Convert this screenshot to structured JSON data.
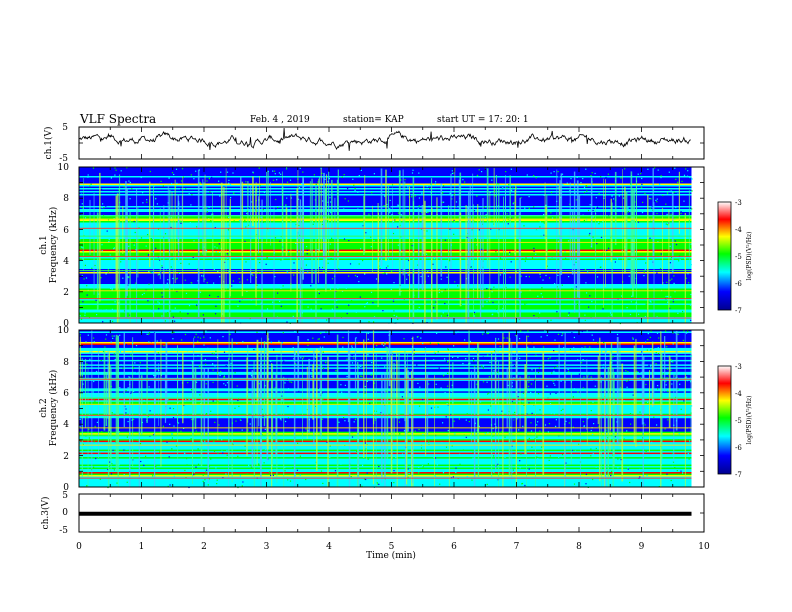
{
  "header": {
    "title": "VLF Spectra",
    "date": "Feb. 4 , 2019",
    "station": "station= KAP",
    "start": "start  UT =  17: 20: 1"
  },
  "chart_data": [
    {
      "type": "line",
      "panel": "ch1-waveform",
      "ylabel": "ch.1(V)",
      "ylim": [
        -5,
        5
      ],
      "yticks": [
        "5",
        "-5"
      ],
      "xlim": [
        0,
        10
      ],
      "description_values": {
        "approx_mean_v": 1.0,
        "approx_range_v": [
          -4.3,
          4.7
        ]
      }
    },
    {
      "type": "heatmap",
      "panel": "ch1-spectrogram",
      "ylabel_line1": "ch.1",
      "ylabel_line2": "Frequency (kHz)",
      "ylim": [
        0,
        10
      ],
      "yticks": [
        "0",
        "2",
        "4",
        "6",
        "8",
        "10"
      ],
      "xlim": [
        0,
        10
      ],
      "data_end_min": 9.8,
      "colorbar": {
        "label": "log(PSD)(V²/Hz)",
        "range": [
          -7,
          -3
        ],
        "ticks": [
          "-3",
          "-4",
          "-5",
          "-6",
          "-7"
        ]
      }
    },
    {
      "type": "heatmap",
      "panel": "ch2-spectrogram",
      "ylabel_line1": "ch.2",
      "ylabel_line2": "Frequency (kHz)",
      "ylim": [
        0,
        10
      ],
      "yticks": [
        "0",
        "2",
        "4",
        "6",
        "8",
        "10"
      ],
      "xlim": [
        0,
        10
      ],
      "data_end_min": 9.8,
      "colorbar": {
        "label": "log(PSD)(V²/Hz)",
        "range": [
          -7,
          -3
        ],
        "ticks": [
          "-3",
          "-4",
          "-5",
          "-6",
          "-7"
        ]
      }
    },
    {
      "type": "line",
      "panel": "ch3-waveform",
      "ylabel": "ch.3(V)",
      "ylim": [
        -5,
        5
      ],
      "yticks": [
        "5",
        "0",
        "-5"
      ],
      "xlim": [
        0,
        10
      ],
      "constant_value_v": -0.2
    }
  ],
  "xaxis": {
    "label": "Time (min)",
    "ticks": [
      "0",
      "1",
      "2",
      "3",
      "4",
      "5",
      "6",
      "7",
      "8",
      "9",
      "10"
    ]
  },
  "colors": {
    "colormap": [
      "#00008f",
      "#0000ff",
      "#00ffff",
      "#00ff00",
      "#ffff00",
      "#ff0000",
      "#ffffff"
    ],
    "line": "#000000"
  }
}
